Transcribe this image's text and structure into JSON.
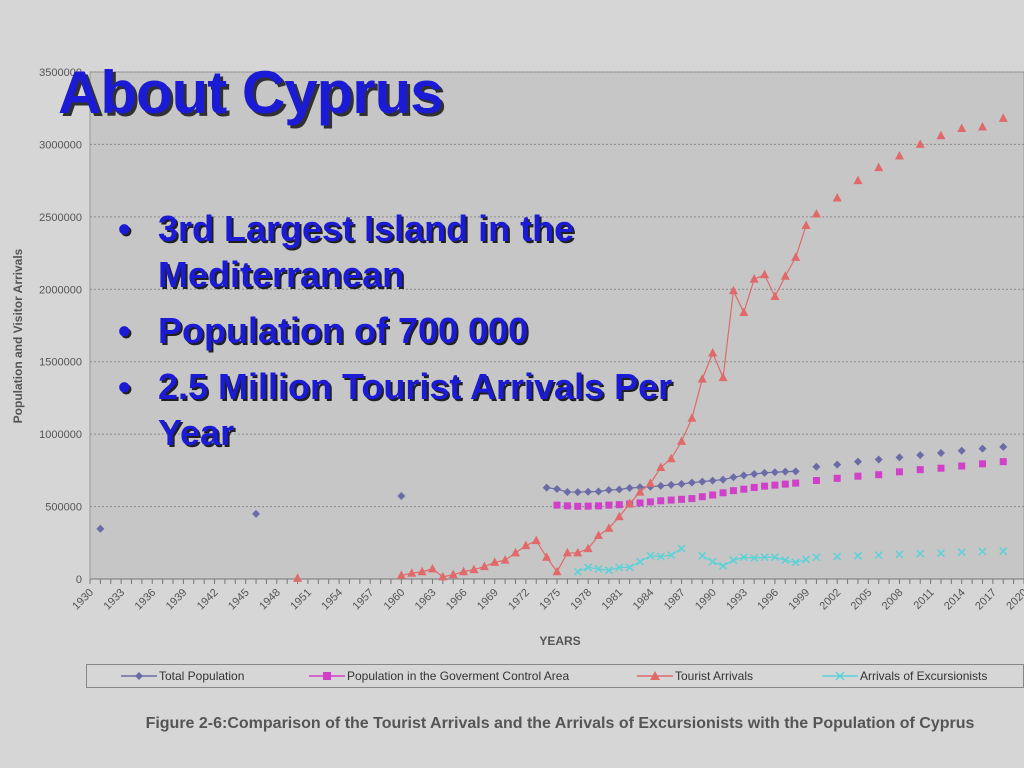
{
  "slide": {
    "title": "About Cyprus",
    "bullets": [
      "3rd Largest Island in the Mediterranean",
      "Population of 700 000",
      "2.5 Million Tourist Arrivals Per Year"
    ]
  },
  "chart_data": {
    "type": "line",
    "xlabel": "YEARS",
    "ylabel": "Population and Visitor Arrivals",
    "caption": "Figure 2-6:Comparison of the Tourist Arrivals and the Arrivals of Excursionists with the Population of Cyprus",
    "xlim": [
      1930,
      2020
    ],
    "ylim": [
      0,
      3500000
    ],
    "x_ticks": [
      1930,
      1933,
      1936,
      1939,
      1942,
      1945,
      1948,
      1951,
      1954,
      1957,
      1960,
      1963,
      1966,
      1969,
      1972,
      1975,
      1978,
      1981,
      1984,
      1987,
      1990,
      1993,
      1996,
      1999,
      2002,
      2005,
      2008,
      2011,
      2014,
      2017,
      2020
    ],
    "y_ticks": [
      0,
      500000,
      1000000,
      1500000,
      2000000,
      2500000,
      3000000,
      3500000
    ],
    "grid": "horizontal dotted",
    "legend_position": "bottom",
    "series": [
      {
        "name": "Total Population",
        "color": "#6b6ba8",
        "marker": "diamond",
        "line": true,
        "points": [
          [
            1931,
            347000
          ],
          [
            1946,
            450000
          ],
          [
            1960,
            573000
          ],
          [
            1974,
            631000
          ],
          [
            1975,
            621000
          ],
          [
            1976,
            601000
          ],
          [
            1977,
            600000
          ],
          [
            1978,
            602000
          ],
          [
            1979,
            604000
          ],
          [
            1980,
            614000
          ],
          [
            1981,
            618000
          ],
          [
            1982,
            628000
          ],
          [
            1983,
            633000
          ],
          [
            1984,
            637000
          ],
          [
            1985,
            643000
          ],
          [
            1986,
            650000
          ],
          [
            1987,
            656000
          ],
          [
            1988,
            665000
          ],
          [
            1989,
            672000
          ],
          [
            1990,
            679000
          ],
          [
            1991,
            686000
          ],
          [
            1992,
            702000
          ],
          [
            1993,
            715000
          ],
          [
            1994,
            725000
          ],
          [
            1995,
            733000
          ],
          [
            1996,
            737000
          ],
          [
            1997,
            741000
          ],
          [
            1998,
            743000
          ],
          [
            2000,
            775000
          ],
          [
            2002,
            790000
          ],
          [
            2004,
            810000
          ],
          [
            2006,
            825000
          ],
          [
            2008,
            840000
          ],
          [
            2010,
            855000
          ],
          [
            2012,
            870000
          ],
          [
            2014,
            885000
          ],
          [
            2016,
            900000
          ],
          [
            2018,
            912000
          ]
        ]
      },
      {
        "name": "Population in the Goverment Control Area",
        "color": "#d040c8",
        "marker": "square",
        "line": false,
        "points": [
          [
            1975,
            510000
          ],
          [
            1976,
            505000
          ],
          [
            1977,
            502000
          ],
          [
            1978,
            503000
          ],
          [
            1979,
            505000
          ],
          [
            1980,
            510000
          ],
          [
            1981,
            513000
          ],
          [
            1982,
            518000
          ],
          [
            1983,
            525000
          ],
          [
            1984,
            532000
          ],
          [
            1985,
            540000
          ],
          [
            1986,
            545000
          ],
          [
            1987,
            550000
          ],
          [
            1988,
            555000
          ],
          [
            1989,
            568000
          ],
          [
            1990,
            580000
          ],
          [
            1991,
            595000
          ],
          [
            1992,
            610000
          ],
          [
            1993,
            620000
          ],
          [
            1994,
            632000
          ],
          [
            1995,
            641000
          ],
          [
            1996,
            648000
          ],
          [
            1997,
            655000
          ],
          [
            1998,
            662000
          ],
          [
            2000,
            680000
          ],
          [
            2002,
            695000
          ],
          [
            2004,
            710000
          ],
          [
            2006,
            720000
          ],
          [
            2008,
            740000
          ],
          [
            2010,
            755000
          ],
          [
            2012,
            765000
          ],
          [
            2014,
            780000
          ],
          [
            2016,
            795000
          ],
          [
            2018,
            810000
          ]
        ]
      },
      {
        "name": "Tourist Arrivals",
        "color": "#e06a6a",
        "marker": "triangle",
        "line": true,
        "points": [
          [
            1950,
            4000
          ],
          [
            1960,
            25000
          ],
          [
            1961,
            40000
          ],
          [
            1962,
            50000
          ],
          [
            1963,
            70000
          ],
          [
            1964,
            15000
          ],
          [
            1965,
            30000
          ],
          [
            1966,
            50000
          ],
          [
            1967,
            65000
          ],
          [
            1968,
            85000
          ],
          [
            1969,
            115000
          ],
          [
            1970,
            130000
          ],
          [
            1971,
            180000
          ],
          [
            1972,
            230000
          ],
          [
            1973,
            265000
          ],
          [
            1974,
            150000
          ],
          [
            1975,
            50000
          ],
          [
            1976,
            180000
          ],
          [
            1977,
            180000
          ],
          [
            1978,
            210000
          ],
          [
            1979,
            300000
          ],
          [
            1980,
            350000
          ],
          [
            1981,
            430000
          ],
          [
            1982,
            520000
          ],
          [
            1983,
            600000
          ],
          [
            1984,
            660000
          ],
          [
            1985,
            770000
          ],
          [
            1986,
            830000
          ],
          [
            1987,
            950000
          ],
          [
            1988,
            1110000
          ],
          [
            1989,
            1380000
          ],
          [
            1990,
            1560000
          ],
          [
            1991,
            1390000
          ],
          [
            1992,
            1990000
          ],
          [
            1993,
            1840000
          ],
          [
            1994,
            2070000
          ],
          [
            1995,
            2100000
          ],
          [
            1996,
            1950000
          ],
          [
            1997,
            2090000
          ],
          [
            1998,
            2220000
          ],
          [
            1999,
            2440000
          ],
          [
            2000,
            2520000
          ],
          [
            2002,
            2630000
          ],
          [
            2004,
            2750000
          ],
          [
            2006,
            2840000
          ],
          [
            2008,
            2920000
          ],
          [
            2010,
            3000000
          ],
          [
            2012,
            3060000
          ],
          [
            2014,
            3110000
          ],
          [
            2016,
            3120000
          ],
          [
            2018,
            3180000
          ]
        ]
      },
      {
        "name": "Arrivals of Excursionists",
        "color": "#5cd2d8",
        "marker": "x",
        "line": true,
        "points": [
          [
            1977,
            50000
          ],
          [
            1978,
            80000
          ],
          [
            1979,
            70000
          ],
          [
            1980,
            60000
          ],
          [
            1981,
            80000
          ],
          [
            1982,
            80000
          ],
          [
            1983,
            120000
          ],
          [
            1984,
            160000
          ],
          [
            1985,
            155000
          ],
          [
            1986,
            165000
          ],
          [
            1987,
            210000
          ],
          [
            1989,
            160000
          ],
          [
            1990,
            120000
          ],
          [
            1991,
            90000
          ],
          [
            1992,
            130000
          ],
          [
            1993,
            150000
          ],
          [
            1994,
            145000
          ],
          [
            1995,
            150000
          ],
          [
            1996,
            150000
          ],
          [
            1997,
            130000
          ],
          [
            1998,
            115000
          ],
          [
            1999,
            135000
          ],
          [
            2000,
            150000
          ],
          [
            2002,
            155000
          ],
          [
            2004,
            160000
          ],
          [
            2006,
            165000
          ],
          [
            2008,
            170000
          ],
          [
            2010,
            175000
          ],
          [
            2012,
            178000
          ],
          [
            2014,
            185000
          ],
          [
            2016,
            190000
          ],
          [
            2018,
            192000
          ]
        ]
      }
    ]
  }
}
